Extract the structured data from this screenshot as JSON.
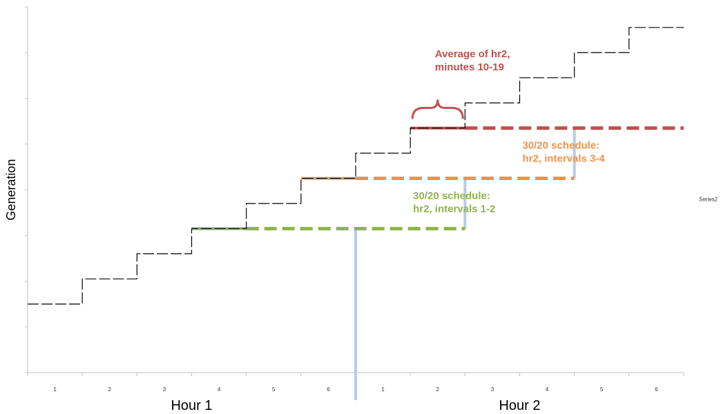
{
  "chart_data": {
    "type": "line",
    "title": "",
    "ylabel": "Generation",
    "xlabel": "",
    "x_tick_labels": [
      "1",
      "2",
      "3",
      "4",
      "5",
      "6",
      "1",
      "2",
      "3",
      "4",
      "5",
      "6"
    ],
    "x_groups": [
      {
        "label": "Hour 1",
        "from_interval": 0,
        "to_interval": 6
      },
      {
        "label": "Hour 2",
        "from_interval": 6,
        "to_interval": 12
      }
    ],
    "ylim": [
      0,
      8
    ],
    "y_ticks": [
      0,
      1,
      2,
      3,
      4,
      5,
      6,
      7,
      8
    ],
    "grid": false,
    "legend": {
      "placement": "right",
      "entries": [
        "Series2"
      ]
    },
    "colors": {
      "step": "#000000",
      "green": "#8FB34A",
      "orange": "#F0934A",
      "red": "#C0504D",
      "blue": "#B7CCE4",
      "axis": "#BFBFBF"
    },
    "series": [
      {
        "name": "Series2",
        "style": "step-dashed",
        "x": [
          0,
          1,
          2,
          3,
          4,
          5,
          6,
          7,
          8,
          9,
          10,
          11
        ],
        "values": [
          1.5,
          2.05,
          2.6,
          3.15,
          3.7,
          4.25,
          4.8,
          5.35,
          5.9,
          6.45,
          7.0,
          7.55
        ]
      }
    ],
    "segments": [
      {
        "name": "green",
        "x0": 3,
        "x1": 8,
        "y": 3.15,
        "solid_until": 4
      },
      {
        "name": "orange",
        "x0": 5,
        "x1": 10,
        "y": 4.25,
        "solid_until": 6
      },
      {
        "name": "red",
        "x0": 7,
        "x1": 12,
        "y": 5.35,
        "solid_until": 8
      }
    ],
    "markers": [
      {
        "x": 6,
        "y_top": 3.15,
        "y_bottom": -0.6
      },
      {
        "x": 8,
        "y_top": 4.25,
        "y_bottom": 3.15
      },
      {
        "x": 10,
        "y_top": 5.35,
        "y_bottom": 4.25
      }
    ],
    "annotations": [
      {
        "name": "green",
        "lines": [
          "30/20 schedule:",
          "hr2, intervals 1-2"
        ],
        "x": 7.05,
        "y": 3.8
      },
      {
        "name": "orange",
        "lines": [
          "30/20 schedule:",
          "hr2, intervals 3-4"
        ],
        "x": 9.05,
        "y": 4.9
      },
      {
        "name": "red",
        "lines": [
          "Average of hr2,",
          "minutes 10-19"
        ],
        "x": 7.45,
        "y": 6.9
      }
    ],
    "brace": {
      "x0": 7,
      "x1": 8,
      "y": 5.55
    }
  }
}
